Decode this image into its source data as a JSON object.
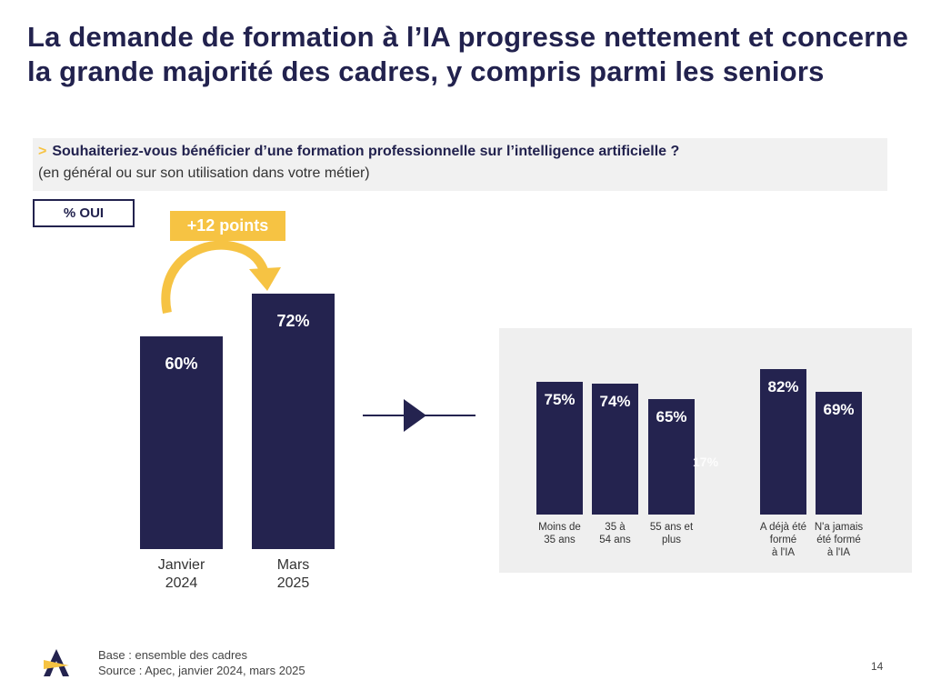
{
  "title": "La demande de formation à l’IA progresse nettement et concerne la grande majorité des cadres, y compris parmi les seniors",
  "question": {
    "chevron": ">",
    "text": "Souhaiteriez-vous bénéficier d’une formation professionnelle sur l’intelligence artificielle ?",
    "sub": "(en général ou sur son utilisation dans votre métier)"
  },
  "legend_box": "% OUI",
  "delta_badge": "+12 points",
  "ghost_label": "17%",
  "footer": {
    "base": "Base : ensemble des cadres",
    "source": "Source : Apec, janvier 2024, mars 2025"
  },
  "page_number": "14",
  "colors": {
    "bar": "#24234f",
    "accent": "#f6c343",
    "panel": "#efefef"
  },
  "chart_data": [
    {
      "type": "bar",
      "title": "",
      "categories": [
        "Janvier\n2024",
        "Mars\n2025"
      ],
      "values": [
        60,
        72
      ],
      "value_labels": [
        "60%",
        "72%"
      ],
      "ylim": [
        0,
        100
      ],
      "unit": "%"
    },
    {
      "type": "bar",
      "title": "",
      "categories": [
        "Moins de\n35 ans",
        "35 à\n54 ans",
        "55 ans et\nplus",
        "A déjà été\nformé\nà l'IA",
        "N'a jamais\nété formé\nà l'IA"
      ],
      "values": [
        75,
        74,
        65,
        82,
        69
      ],
      "value_labels": [
        "75%",
        "74%",
        "65%",
        "82%",
        "69%"
      ],
      "ylim": [
        0,
        100
      ],
      "unit": "%"
    }
  ]
}
